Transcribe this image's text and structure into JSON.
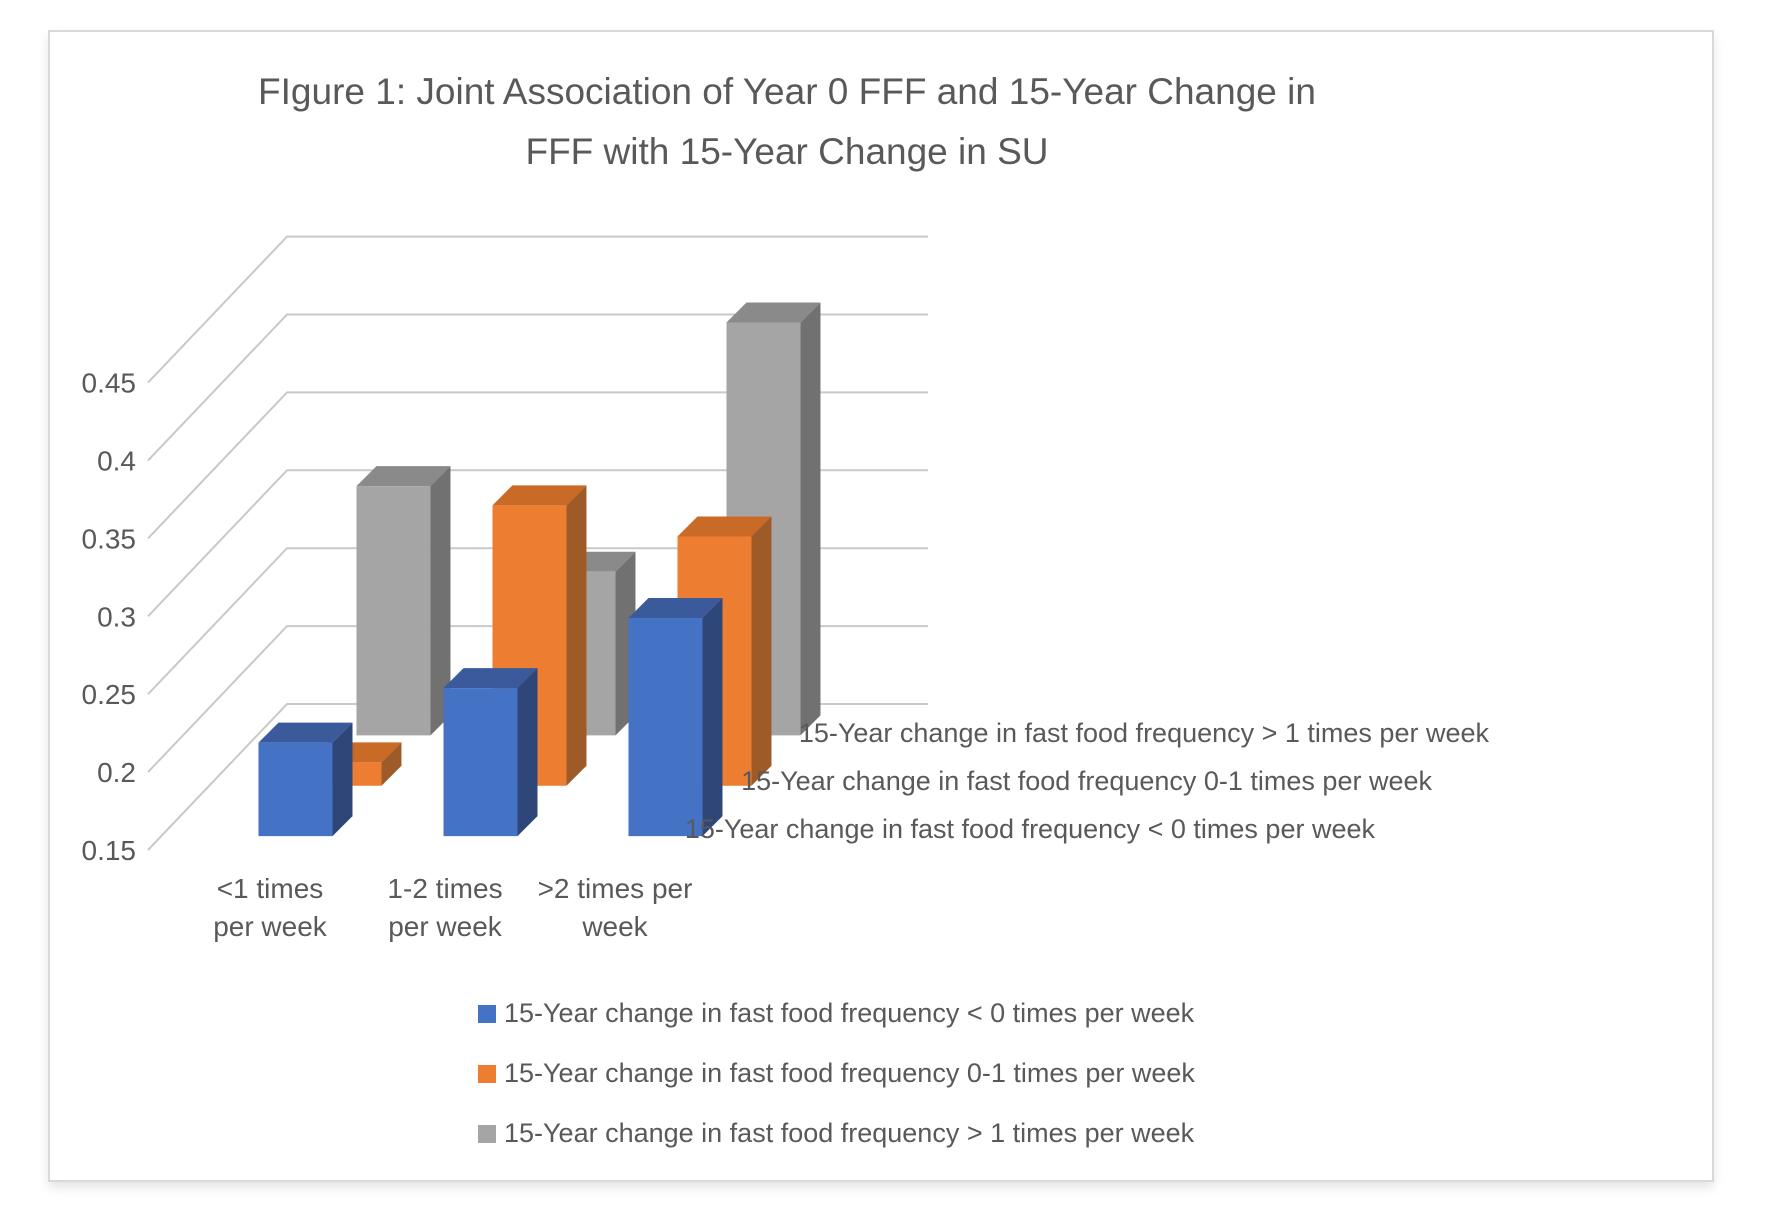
{
  "chart": {
    "title_lines": [
      "FIgure 1: Joint Association of Year 0 FFF and 15-Year Change in",
      "FFF with 15-Year Change in SU"
    ],
    "text_color": "#595959",
    "gridline_color": "#C9C9C9",
    "frame_border_color": "#D9D9D9",
    "background_color": "#FFFFFF"
  },
  "chart_data": {
    "type": "bar",
    "subtype": "3d-clustered-column",
    "title": "FIgure 1: Joint Association of Year 0 FFF and 15-Year Change in FFF with 15-Year Change in SU",
    "categories": [
      "<1 times per week",
      "1-2 times per week",
      ">2 times per week"
    ],
    "category_label_lines": [
      [
        "<1 times",
        "per week"
      ],
      [
        "1-2 times",
        "per week"
      ],
      [
        ">2 times per",
        "week"
      ]
    ],
    "series": [
      {
        "name": "15-Year change in fast food frequency < 0 times per week",
        "color": "#4472C4",
        "top_color": "#3A5A9C",
        "side_color": "#2E4778",
        "values": [
          0.21,
          0.245,
          0.29
        ]
      },
      {
        "name": "15-Year change in fast food frequency 0-1 times per week",
        "color": "#ED7D31",
        "top_color": "#C96A26",
        "side_color": "#9E5B28",
        "values": [
          0.165,
          0.33,
          0.31
        ]
      },
      {
        "name": "15-Year change in fast food frequency > 1 times per week",
        "color": "#A5A5A5",
        "top_color": "#8A8A8A",
        "side_color": "#717171",
        "values": [
          0.31,
          0.255,
          0.415
        ]
      }
    ],
    "depth_axis_labels_top_to_bottom": [
      "15-Year change in fast food frequency > 1 times per week",
      "15-Year change in fast food frequency 0-1 times per week",
      "15-Year change in fast food frequency < 0 times per week"
    ],
    "value_axis": {
      "min": 0.15,
      "max": 0.45,
      "step": 0.05,
      "tick_labels": [
        "0.15",
        "0.2",
        "0.25",
        "0.3",
        "0.35",
        "0.4",
        "0.45"
      ]
    },
    "legend": {
      "position": "bottom",
      "entries": [
        "15-Year change in fast food frequency < 0 times per week",
        "15-Year change in fast food frequency 0-1 times per week",
        "15-Year change in fast food frequency > 1 times per week"
      ]
    },
    "grid": true
  }
}
